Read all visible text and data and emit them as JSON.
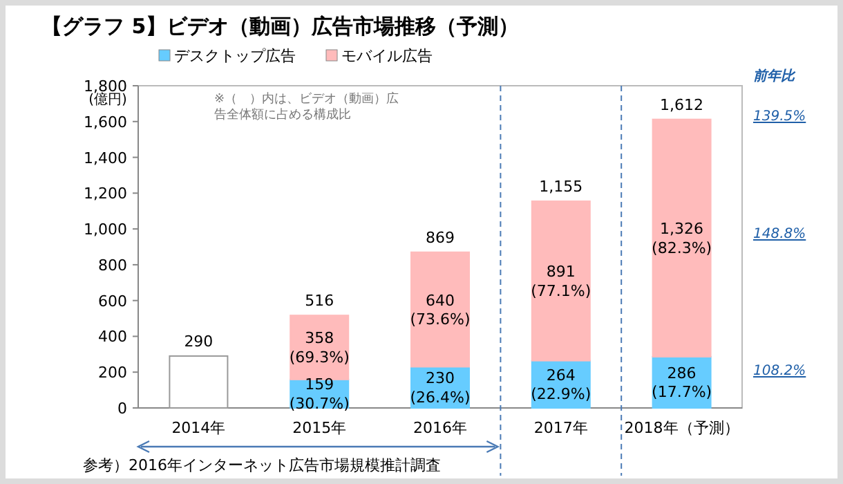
{
  "chart_data": {
    "type": "bar",
    "stacked": true,
    "title": "【グラフ 5】ビデオ（動画）広告市場推移（予測）",
    "ylabel": "(億円)",
    "categories": [
      "2014年",
      "2015年",
      "2016年",
      "2017年",
      "2018年（予測）"
    ],
    "series": [
      {
        "color": "#ffffff",
        "values": [
          290,
          null,
          null,
          null,
          null
        ]
      },
      {
        "name": "デスクトップ広告",
        "color": "#66ccff",
        "values": [
          null,
          159,
          230,
          264,
          286
        ],
        "value_labels": [
          null,
          "159\n(30.7%)",
          "230\n(26.4%)",
          "264\n(22.9%)",
          "286\n(17.7%)"
        ]
      },
      {
        "name": "モバイル広告",
        "color": "#ffbbbb",
        "values": [
          null,
          358,
          640,
          891,
          1326
        ],
        "value_labels": [
          null,
          "358\n(69.3%)",
          "640\n(73.6%)",
          "891\n(77.1%)",
          "1,326\n(82.3%)"
        ]
      }
    ],
    "totals": [
      "290",
      "516",
      "869",
      "1,155",
      "1,612"
    ],
    "ylim": [
      0,
      1800
    ],
    "yticks": [
      0,
      200,
      400,
      600,
      800,
      {
        "value": 1000,
        "label": "1,000"
      },
      {
        "value": 1200,
        "label": "1,200"
      },
      {
        "value": 1400,
        "label": "1,400"
      },
      {
        "value": 1600,
        "label": "1,600"
      },
      {
        "value": 1800,
        "label": "1,800"
      }
    ],
    "legend": "top",
    "annotations": [
      "※（　）内は、ビデオ（動画）広告全体額に占める構成比",
      "前年比",
      "139.5%",
      "148.8%",
      "108.2%",
      "参考）2016年インターネット広告市場規模推計調査"
    ]
  }
}
